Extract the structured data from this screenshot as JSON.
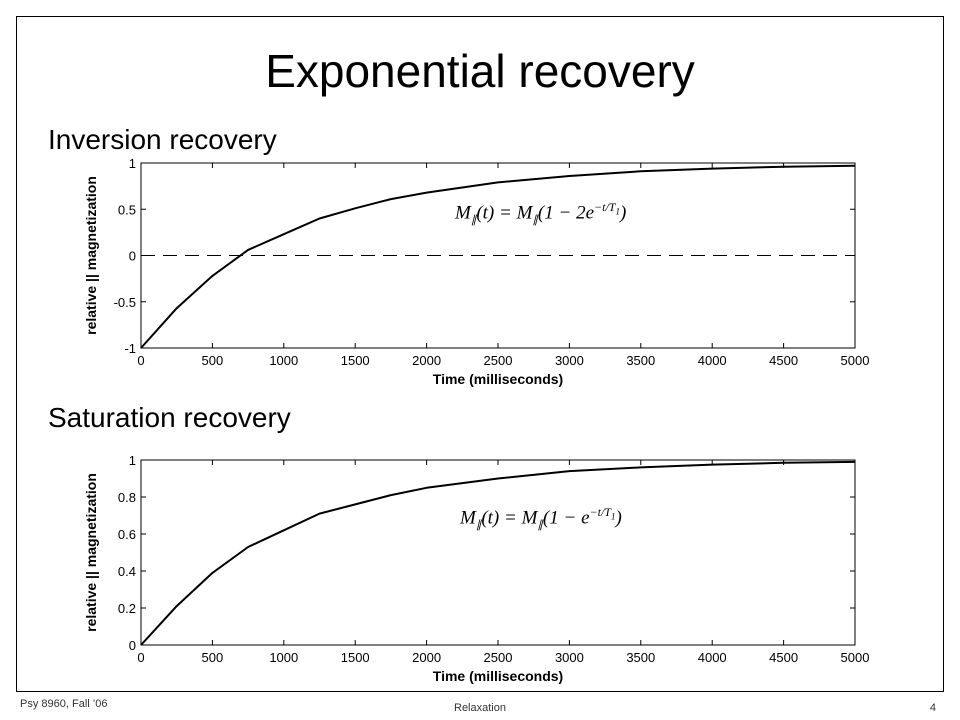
{
  "slide": {
    "title": "Exponential recovery",
    "footer_left": "Psy 8960, Fall ’06",
    "footer_center": "Relaxation",
    "page_number": "4"
  },
  "chart_data": [
    {
      "type": "line",
      "heading": "Inversion recovery",
      "xlabel": "Time (milliseconds)",
      "ylabel": "relative || magnetization",
      "xlim": [
        0,
        5000
      ],
      "ylim": [
        -1,
        1
      ],
      "xticks": [
        0,
        500,
        1000,
        1500,
        2000,
        2500,
        3000,
        3500,
        4000,
        4500,
        5000
      ],
      "yticks": [
        -1,
        -0.5,
        0,
        0.5,
        1
      ],
      "x": [
        0,
        250,
        500,
        750,
        1000,
        1250,
        1500,
        1750,
        2000,
        2500,
        3000,
        3500,
        4000,
        4500,
        5000
      ],
      "y": [
        -1.0,
        -0.57,
        -0.22,
        0.06,
        0.23,
        0.4,
        0.51,
        0.61,
        0.68,
        0.79,
        0.86,
        0.91,
        0.94,
        0.96,
        0.97
      ],
      "reference_line": {
        "y": 0,
        "style": "dashed"
      },
      "formula": "M∥(t) = M∥(1 − 2e^(−t/T₁))",
      "grid": false
    },
    {
      "type": "line",
      "heading": "Saturation recovery",
      "xlabel": "Time (milliseconds)",
      "ylabel": "relative || magnetization",
      "xlim": [
        0,
        5000
      ],
      "ylim": [
        0,
        1
      ],
      "xticks": [
        0,
        500,
        1000,
        1500,
        2000,
        2500,
        3000,
        3500,
        4000,
        4500,
        5000
      ],
      "yticks": [
        0,
        0.2,
        0.4,
        0.6,
        0.8,
        1
      ],
      "x": [
        0,
        250,
        500,
        750,
        1000,
        1250,
        1500,
        1750,
        2000,
        2500,
        3000,
        3500,
        4000,
        4500,
        5000
      ],
      "y": [
        0.0,
        0.21,
        0.39,
        0.53,
        0.62,
        0.71,
        0.76,
        0.81,
        0.85,
        0.9,
        0.94,
        0.96,
        0.975,
        0.985,
        0.99
      ],
      "formula": "M∥(t) = M∥(1 − e^(−t/T₁))",
      "grid": false
    }
  ]
}
